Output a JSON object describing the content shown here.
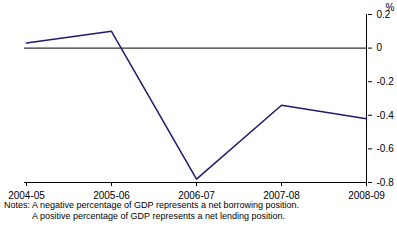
{
  "chart_data": {
    "type": "line",
    "y_label": "%",
    "categories": [
      "2004-05",
      "2005-06",
      "2006-07",
      "2007-08",
      "2008-09"
    ],
    "values": [
      0.03,
      0.1,
      -0.78,
      -0.34,
      -0.42
    ],
    "color": "#1c1c6e",
    "ylim": [
      -0.8,
      0.2
    ],
    "yticks": [
      {
        "value": -0.8,
        "label": "-0.8"
      },
      {
        "value": -0.6,
        "label": "-0.6"
      },
      {
        "value": -0.4,
        "label": "-0.4"
      },
      {
        "value": -0.2,
        "label": "-0.2"
      },
      0,
      0.2
    ],
    "grid": false,
    "notes": [
      "Notes: A negative percentage of GDP represents a net borrowing position.",
      "A positive percentage of GDP represents a net lending position."
    ]
  }
}
